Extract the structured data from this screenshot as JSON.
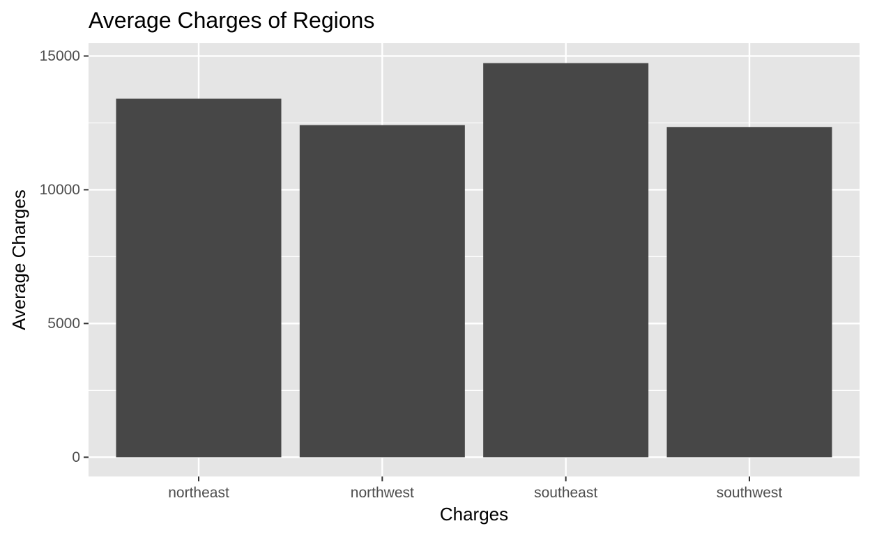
{
  "chart_data": {
    "type": "bar",
    "title": "Average Charges of Regions",
    "xlabel": "Charges",
    "ylabel": "Average Charges",
    "categories": [
      "northeast",
      "northwest",
      "southeast",
      "southwest"
    ],
    "values": [
      13406,
      12418,
      14735,
      12347
    ],
    "ylim": [
      -720,
      15480
    ],
    "yticks": [
      0,
      5000,
      10000,
      15000
    ],
    "ytick_labels": [
      "0",
      "5000",
      "10000",
      "15000"
    ],
    "grid": true,
    "legend": "none",
    "colors": {
      "panel_background": "#e5e5e5",
      "gridline": "#ffffff",
      "bar_fill": "#474747",
      "tick_mark": "#333333",
      "tick_text": "#4d4d4d"
    }
  }
}
